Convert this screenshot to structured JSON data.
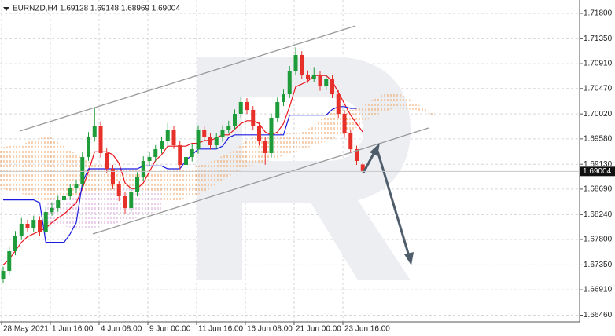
{
  "chart_data": {
    "type": "candlestick",
    "title": "EURNZD,H4 1.69128 1.69148 1.68969 1.69004",
    "categories": [
      "28 May 2021",
      null,
      null,
      null,
      null,
      null,
      null,
      null,
      "1 Jun 16:00",
      null,
      null,
      null,
      null,
      null,
      null,
      null,
      "4 Jun 08:00",
      null,
      null,
      null,
      null,
      null,
      null,
      null,
      "9 Jun 00:00",
      null,
      null,
      null,
      null,
      null,
      null,
      null,
      "11 Jun 16:00",
      null,
      null,
      null,
      null,
      null,
      null,
      null,
      "16 Jun 08:00",
      null,
      null,
      null,
      null,
      null,
      null,
      null,
      "21 Jun 00:00",
      null,
      null,
      null,
      null,
      null,
      null,
      null,
      "23 Jun 16:00",
      null,
      null,
      null
    ],
    "open": [
      1.671,
      1.67244,
      1.67592,
      1.67869,
      1.68078,
      1.68008,
      1.68147,
      1.67939,
      1.68286,
      1.68356,
      1.68494,
      1.68564,
      1.68703,
      1.68772,
      1.69258,
      1.69606,
      1.69814,
      1.69328,
      1.6905,
      1.68772,
      1.68564,
      1.68356,
      1.68633,
      1.68911,
      1.69189,
      1.69258,
      1.69397,
      1.69536,
      1.69744,
      1.69467,
      1.69119,
      1.69258,
      1.69397,
      1.69744,
      1.69606,
      1.69467,
      1.69606,
      1.69744,
      1.69814,
      1.70022,
      1.70231,
      1.70092,
      1.69814,
      1.69536,
      1.69328,
      1.69953,
      1.70231,
      1.70369,
      1.70786,
      1.71064,
      1.70717,
      1.70647,
      1.70717,
      1.70508,
      1.70647,
      1.70369,
      1.70022,
      1.69675,
      1.69397,
      1.69128
    ],
    "high": [
      1.6732,
      1.6768,
      1.6795,
      1.6818,
      1.6815,
      1.6822,
      1.6821,
      1.6837,
      1.6846,
      1.6857,
      1.6864,
      1.6878,
      1.6886,
      1.6934,
      1.697,
      1.7012,
      1.6989,
      1.6941,
      1.6912,
      1.6884,
      1.6864,
      1.6871,
      1.6899,
      1.6927,
      1.6935,
      1.6947,
      1.6961,
      1.6986,
      1.6981,
      1.6954,
      1.6933,
      1.6948,
      1.6982,
      1.6981,
      1.6968,
      1.6968,
      1.6982,
      1.699,
      1.701,
      1.7032,
      1.703,
      1.7016,
      1.6988,
      1.6961,
      1.7003,
      1.7031,
      1.7045,
      1.7087,
      1.712,
      1.7113,
      1.7079,
      1.7085,
      1.7078,
      1.7072,
      1.7071,
      1.7044,
      1.7009,
      1.6974,
      1.6946,
      1.69148
    ],
    "low": [
      1.6703,
      1.6718,
      1.6752,
      1.6779,
      1.6793,
      1.6794,
      1.6786,
      1.6789,
      1.6822,
      1.6829,
      1.6843,
      1.685,
      1.6862,
      1.6872,
      1.6919,
      1.6953,
      1.6925,
      1.6897,
      1.6869,
      1.6848,
      1.6826,
      1.6829,
      1.6856,
      1.6884,
      1.6911,
      1.6918,
      1.6932,
      1.6946,
      1.694,
      1.6904,
      1.6905,
      1.6918,
      1.6932,
      1.6953,
      1.6939,
      1.694,
      1.6953,
      1.6967,
      1.6974,
      1.6995,
      1.7002,
      1.6974,
      1.6946,
      1.6912,
      1.6925,
      1.6988,
      1.7016,
      1.703,
      1.7071,
      1.7064,
      1.7057,
      1.7058,
      1.7043,
      1.7044,
      1.703,
      1.6995,
      1.696,
      1.6932,
      1.6912,
      1.68969
    ],
    "close": [
      1.67244,
      1.67592,
      1.67869,
      1.68078,
      1.68008,
      1.68147,
      1.67939,
      1.68286,
      1.68356,
      1.68494,
      1.68564,
      1.68703,
      1.68772,
      1.69258,
      1.69606,
      1.69814,
      1.69328,
      1.6905,
      1.68772,
      1.68564,
      1.68356,
      1.68633,
      1.68911,
      1.69189,
      1.69258,
      1.69397,
      1.69536,
      1.69744,
      1.69467,
      1.69119,
      1.69258,
      1.69397,
      1.69744,
      1.69606,
      1.69467,
      1.69606,
      1.69744,
      1.69814,
      1.70022,
      1.70231,
      1.70092,
      1.69814,
      1.69536,
      1.69328,
      1.69953,
      1.70231,
      1.70369,
      1.70786,
      1.71064,
      1.70717,
      1.70647,
      1.70717,
      1.70508,
      1.70647,
      1.70369,
      1.70022,
      1.69675,
      1.69397,
      1.69189,
      1.69004
    ],
    "up_color": "#1f9c3a",
    "down_color": "#e8302a",
    "lines": [
      {
        "color": "#e8141c",
        "values": [
          1.6735,
          1.6745,
          1.676,
          1.6775,
          1.6785,
          1.679,
          1.6795,
          1.68,
          1.681,
          1.6818,
          1.6825,
          1.6835,
          1.6845,
          1.687,
          1.69,
          1.6935,
          1.6935,
          1.6935,
          1.693,
          1.6915,
          1.688,
          1.687,
          1.687,
          1.688,
          1.69,
          1.692,
          1.693,
          1.6945,
          1.6945,
          1.6945,
          1.6945,
          1.695,
          1.695,
          1.6955,
          1.6955,
          1.696,
          1.6965,
          1.6965,
          1.6975,
          1.6985,
          1.699,
          1.699,
          1.6985,
          1.697,
          1.6965,
          1.697,
          1.6985,
          1.7015,
          1.705,
          1.7055,
          1.706,
          1.707,
          1.707,
          1.707,
          1.706,
          1.704,
          1.702,
          1.7,
          1.6985,
          1.697
        ]
      },
      {
        "color": "#1a1ae0",
        "values": [
          1.685,
          1.685,
          1.685,
          1.685,
          1.685,
          1.685,
          1.6845,
          1.6775,
          1.6775,
          1.6775,
          1.6775,
          1.679,
          1.681,
          1.688,
          1.6905,
          1.6905,
          1.6905,
          1.6905,
          1.6905,
          1.6905,
          1.6905,
          1.6905,
          1.6905,
          1.691,
          1.691,
          1.691,
          1.691,
          1.6905,
          1.6905,
          1.6905,
          1.692,
          1.693,
          1.694,
          1.694,
          1.694,
          1.694,
          1.6945,
          1.696,
          1.6965,
          1.6965,
          1.6965,
          1.6965,
          1.6965,
          1.6965,
          1.6965,
          1.6965,
          1.6965,
          1.7,
          1.7,
          1.7,
          1.7,
          1.7,
          1.7,
          1.7,
          1.701,
          1.7015,
          1.7015,
          1.7012,
          1.7012,
          null
        ]
      }
    ],
    "ylim": [
      1.66342,
      1.72036
    ],
    "yticks": [
      {
        "value": 1.718,
        "label": "1.71800"
      },
      {
        "value": 1.7135,
        "label": "1.71350"
      },
      {
        "value": 1.7091,
        "label": "1.70910"
      },
      {
        "value": 1.7047,
        "label": "1.70470"
      },
      {
        "value": 1.7002,
        "label": "1.70020"
      },
      {
        "value": 1.6958,
        "label": "1.69580"
      },
      {
        "value": 1.6913,
        "label": "1.69130"
      },
      {
        "value": 1.6869,
        "label": "1.68690"
      },
      {
        "value": 1.6824,
        "label": "1.68240"
      },
      {
        "value": 1.678,
        "label": "1.67800"
      },
      {
        "value": 1.6735,
        "label": "1.67350"
      },
      {
        "value": 1.6691,
        "label": "1.66910"
      },
      {
        "value": 1.6646,
        "label": "1.66460"
      }
    ],
    "grid": true
  }
}
